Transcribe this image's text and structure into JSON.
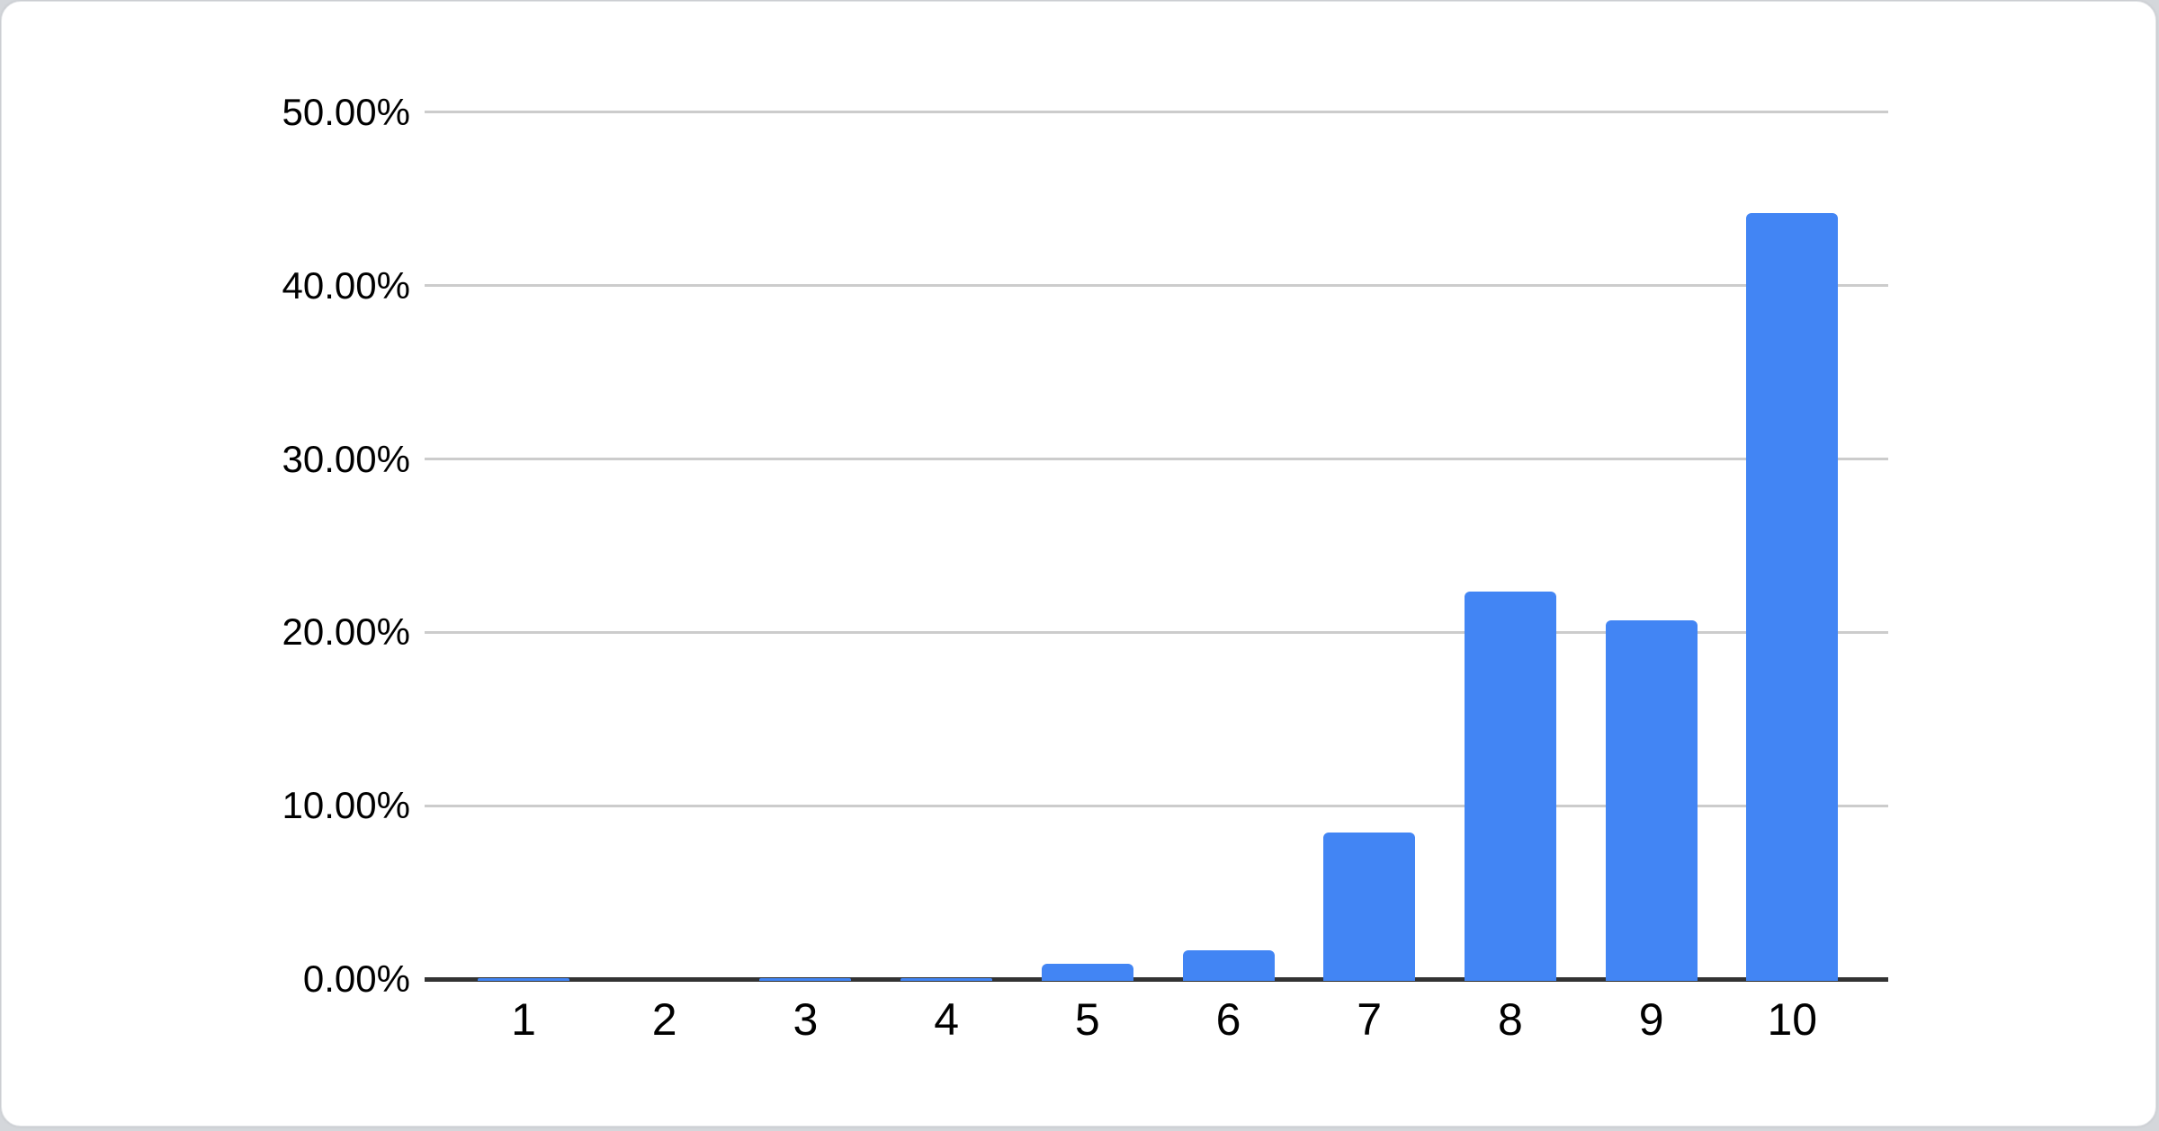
{
  "chart_data": {
    "type": "bar",
    "title": "",
    "xlabel": "",
    "ylabel": "",
    "categories": [
      "1",
      "2",
      "3",
      "4",
      "5",
      "6",
      "7",
      "8",
      "9",
      "10"
    ],
    "values": [
      0.2,
      0,
      0.2,
      0.2,
      1.0,
      1.8,
      8.6,
      22.5,
      20.8,
      44.3
    ],
    "value_unit": "percent",
    "ylim": [
      0,
      50
    ],
    "ytick_step": 10,
    "ytick_labels": [
      "0.00%",
      "10.00%",
      "20.00%",
      "30.00%",
      "40.00%",
      "50.00%"
    ],
    "grid": true,
    "legend_position": "none"
  },
  "colors": {
    "bar": "#4285f4",
    "gridline": "#cccccc",
    "baseline": "#333333",
    "tick_text": "#000000",
    "card_bg": "#ffffff",
    "page_bg": "#d4d7db",
    "card_border": "#e2e4e7"
  }
}
